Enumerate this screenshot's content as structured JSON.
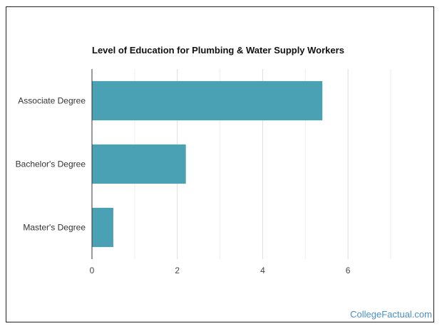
{
  "brand": {
    "watermark": "CollegeFactual.com",
    "watermark_color": "#4a8fc9"
  },
  "chart_data": {
    "type": "bar",
    "orientation": "horizontal",
    "title": "Level of Education for Plumbing & Water Supply Workers",
    "categories": [
      "Associate Degree",
      "Bachelor's Degree",
      "Master's Degree"
    ],
    "values": [
      5.4,
      2.2,
      0.5
    ],
    "xlabel": "",
    "ylabel": "",
    "xlim": [
      0,
      7
    ],
    "xticks": [
      0,
      2,
      4,
      6
    ],
    "grid": true,
    "legend": "none",
    "bar_color": "#4aa1b3"
  }
}
